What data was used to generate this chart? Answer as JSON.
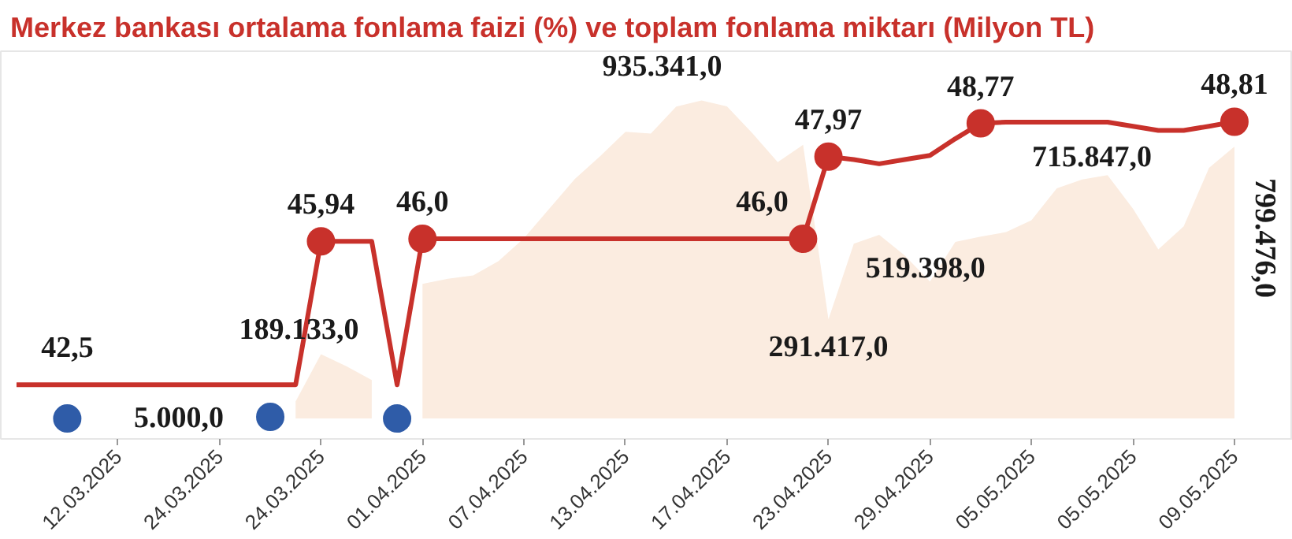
{
  "chart_data": {
    "type": "line",
    "title": "Merkez bankası ortalama fonlama faizi (%) ve toplam fonlama miktarı (Milyon TL)",
    "categories": [
      null,
      null,
      null,
      null,
      "12.03.2025",
      null,
      null,
      null,
      "24.03.2025",
      null,
      null,
      null,
      "24.03.2025",
      null,
      null,
      null,
      "01.04.2025",
      null,
      null,
      null,
      "07.04.2025",
      null,
      null,
      null,
      "13.04.2025",
      null,
      null,
      null,
      "17.04.2025",
      null,
      null,
      null,
      "23.04.2025",
      null,
      null,
      null,
      "29.04.2025",
      null,
      null,
      null,
      "05.05.2025",
      null,
      null,
      null,
      "05.05.2025",
      null,
      null,
      null,
      "09.05.2025"
    ],
    "ylim": [
      41.2,
      50.5
    ],
    "y2lim": [
      -60000,
      1080000
    ],
    "tick_labels": "x",
    "series": [
      {
        "type": "area",
        "axis": "y2",
        "color": "#fbece0",
        "values": [
          null,
          null,
          null,
          null,
          null,
          null,
          null,
          null,
          null,
          null,
          null,
          50000,
          189133,
          154000,
          113000,
          null,
          396000,
          411000,
          421000,
          463000,
          530000,
          617000,
          704000,
          771000,
          843000,
          838000,
          917000,
          935341,
          918000,
          839000,
          754000,
          805000,
          291417,
          514000,
          540000,
          480000,
          403000,
          519398,
          535000,
          548000,
          583000,
          677000,
          703000,
          715847,
          617000,
          497000,
          565000,
          737000,
          799476
        ],
        "value_labels": [
          null,
          null,
          null,
          null,
          null,
          null,
          null,
          null,
          null,
          null,
          null,
          null,
          "189.133,0",
          null,
          null,
          null,
          null,
          null,
          null,
          null,
          null,
          null,
          null,
          null,
          null,
          null,
          null,
          "935.341,0",
          null,
          null,
          null,
          null,
          "291.417,0",
          null,
          null,
          null,
          null,
          "519.398,0",
          null,
          null,
          null,
          null,
          null,
          "715.847,0",
          null,
          null,
          null,
          null,
          "799.476,0"
        ]
      },
      {
        "axis": "y",
        "color": "#c8312b",
        "line_style": "solid",
        "values": [
          42.5,
          42.5,
          42.5,
          42.5,
          42.5,
          42.5,
          42.5,
          42.5,
          42.5,
          42.5,
          42.5,
          42.5,
          45.94,
          45.94,
          45.94,
          42.5,
          46.0,
          46.0,
          46.0,
          46.0,
          46.0,
          46.0,
          46.0,
          46.0,
          46.0,
          46.0,
          46.0,
          46.0,
          46.0,
          46.0,
          46.0,
          46.0,
          47.97,
          47.9,
          47.8,
          47.9,
          48.0,
          48.4,
          48.77,
          48.8,
          48.8,
          48.8,
          48.8,
          48.8,
          48.7,
          48.6,
          48.6,
          48.7,
          48.81
        ],
        "value_labels": [
          null,
          null,
          "42,5",
          null,
          null,
          null,
          null,
          null,
          null,
          null,
          null,
          null,
          null,
          null,
          null,
          null,
          null,
          null,
          null,
          null,
          null,
          null,
          null,
          null,
          null,
          null,
          null,
          null,
          null,
          null,
          null,
          null,
          null,
          null,
          null,
          null,
          null,
          null,
          null,
          null,
          null,
          null,
          null,
          null,
          null,
          null,
          null,
          null,
          null
        ]
      },
      {
        "type": "scatter",
        "axis": "y",
        "color": "#c8312b",
        "marker": "circle",
        "values": [
          null,
          null,
          null,
          null,
          null,
          null,
          null,
          null,
          null,
          null,
          null,
          null,
          45.94,
          null,
          null,
          null,
          46.0,
          null,
          null,
          null,
          null,
          null,
          null,
          null,
          null,
          null,
          null,
          null,
          null,
          null,
          null,
          46.0,
          47.97,
          null,
          null,
          null,
          null,
          null,
          48.77,
          null,
          null,
          null,
          null,
          null,
          null,
          null,
          null,
          null,
          48.81
        ],
        "value_labels": [
          null,
          null,
          null,
          null,
          null,
          null,
          null,
          null,
          null,
          null,
          null,
          null,
          "45,94",
          null,
          null,
          null,
          "46,0",
          null,
          null,
          null,
          null,
          null,
          null,
          null,
          null,
          null,
          null,
          null,
          null,
          null,
          null,
          "46,0",
          "47,97",
          null,
          null,
          null,
          null,
          null,
          "48,77",
          null,
          null,
          null,
          null,
          null,
          null,
          null,
          null,
          null,
          "48,81"
        ]
      },
      {
        "type": "scatter",
        "axis": "y2",
        "color": "#2f5ca8",
        "marker": "circle",
        "values": [
          null,
          null,
          0,
          null,
          null,
          null,
          null,
          null,
          null,
          null,
          5000,
          null,
          null,
          null,
          null,
          0,
          null,
          null,
          null,
          null,
          null,
          null,
          null,
          null,
          null,
          null,
          null,
          null,
          null,
          null,
          null,
          null,
          null,
          null,
          null,
          null,
          null,
          null,
          null,
          null,
          null,
          null,
          null,
          null,
          null,
          null,
          null,
          null,
          null
        ],
        "value_labels": [
          null,
          null,
          null,
          null,
          null,
          null,
          null,
          null,
          null,
          null,
          "5.000,0",
          null,
          null,
          null,
          null,
          null,
          null,
          null,
          null,
          null,
          null,
          null,
          null,
          null,
          null,
          null,
          null,
          null,
          null,
          null,
          null,
          null,
          null,
          null,
          null,
          null,
          null,
          null,
          null,
          null,
          null,
          null,
          null,
          null,
          null,
          null,
          null,
          null,
          null
        ]
      }
    ]
  }
}
